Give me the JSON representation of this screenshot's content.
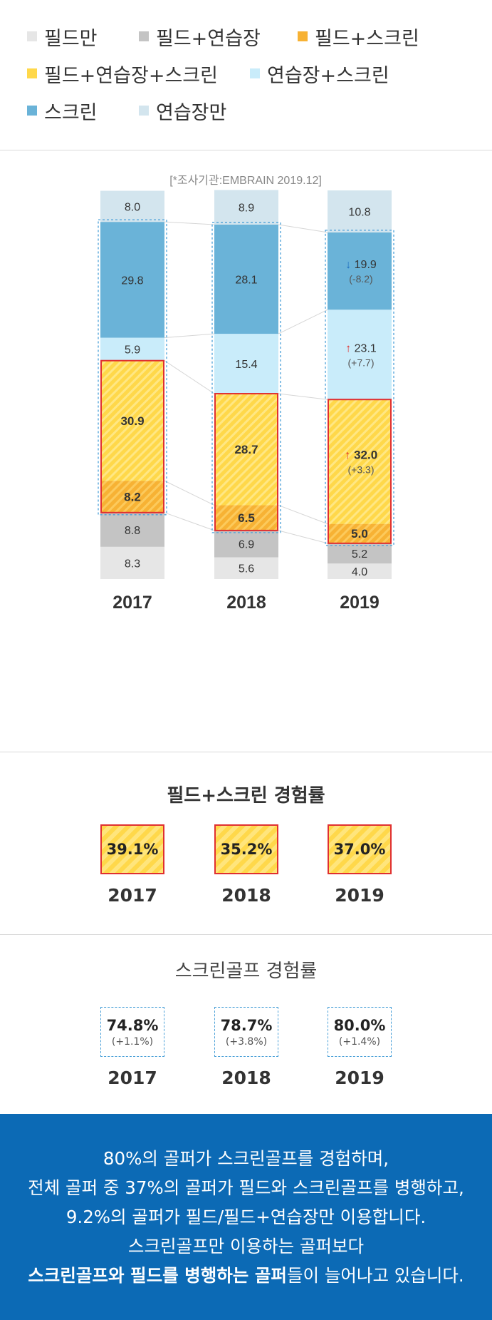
{
  "legend": {
    "items": [
      {
        "label": "필드만",
        "color": "#e6e6e6"
      },
      {
        "label": "필드+연습장",
        "color": "#c4c4c4"
      },
      {
        "label": "필드+스크린",
        "color": "#f7b234"
      },
      {
        "label": "필드+연습장+스크린",
        "color": "#ffd84a"
      },
      {
        "label": "연습장+스크린",
        "color": "#c9ecfa"
      },
      {
        "label": "스크린",
        "color": "#6ab3d8"
      },
      {
        "label": "연습장만",
        "color": "#d3e5ee"
      }
    ]
  },
  "chart_data": {
    "type": "bar",
    "stacked": true,
    "source_note": "[*조사기관:EMBRAIN 2019.12]",
    "categories": [
      "2017",
      "2018",
      "2019"
    ],
    "series": [
      {
        "name": "필드만",
        "values": [
          8.3,
          5.6,
          4.0
        ],
        "color": "#e6e6e6"
      },
      {
        "name": "필드+연습장",
        "values": [
          8.8,
          6.9,
          5.2
        ],
        "color": "#c4c4c4"
      },
      {
        "name": "필드+스크린",
        "values": [
          8.2,
          6.5,
          5.0
        ],
        "color": "#f7b234"
      },
      {
        "name": "필드+연습장+스크린",
        "values": [
          30.9,
          28.7,
          32.0
        ],
        "color": "#ffd84a"
      },
      {
        "name": "연습장+스크린",
        "values": [
          5.9,
          15.4,
          23.1
        ],
        "color": "#c9ecfa"
      },
      {
        "name": "스크린",
        "values": [
          29.8,
          28.1,
          19.9
        ],
        "color": "#6ab3d8"
      },
      {
        "name": "연습장만",
        "values": [
          8.0,
          8.9,
          10.8
        ],
        "color": "#d3e5ee"
      }
    ],
    "annotations": [
      {
        "year": "2019",
        "series": "스크린",
        "arrow": "down",
        "change": "(-8.2)"
      },
      {
        "year": "2019",
        "series": "연습장+스크린",
        "arrow": "up",
        "change": "(+7.7)"
      },
      {
        "year": "2019",
        "series": "필드+연습장+스크린",
        "arrow": "up",
        "change": "(+3.3)"
      }
    ]
  },
  "field_screen": {
    "title": "필드+스크린 경험률",
    "items": [
      {
        "value": "39.1%",
        "year": "2017"
      },
      {
        "value": "35.2%",
        "year": "2018"
      },
      {
        "value": "37.0%",
        "year": "2019"
      }
    ]
  },
  "screen_golf": {
    "title": "스크린골프 경험률",
    "items": [
      {
        "value": "74.8%",
        "change": "(+1.1%)",
        "year": "2017"
      },
      {
        "value": "78.7%",
        "change": "(+3.8%)",
        "year": "2018"
      },
      {
        "value": "80.0%",
        "change": "(+1.4%)",
        "year": "2019"
      }
    ]
  },
  "footer": {
    "line1": "80%의 골퍼가 스크린골프를 경험하며,",
    "line2": "전체 골퍼 중 37%의 골퍼가 필드와 스크린골프를 병행하고,",
    "line3": "9.2%의 골퍼가 필드/필드+연습장만 이용합니다.",
    "line4": "스크린골프만 이용하는 골퍼보다",
    "line5_bold": "스크린골프와 필드를 병행하는 골퍼",
    "line5_rest": "들이 늘어나고 있습니다."
  }
}
